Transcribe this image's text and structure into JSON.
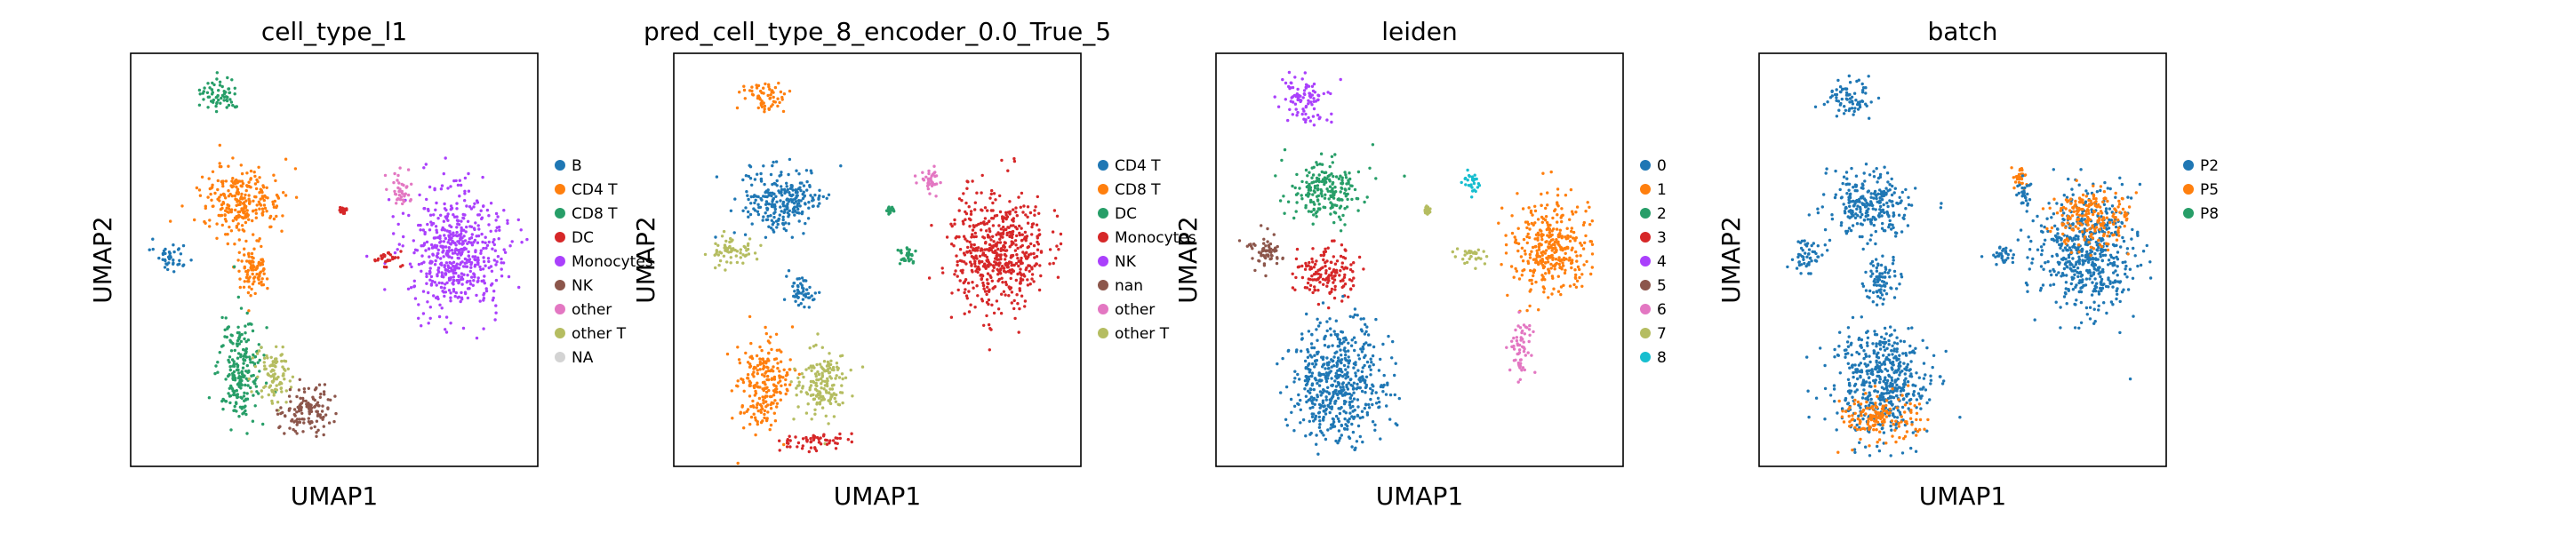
{
  "figure": {
    "background": "#ffffff"
  },
  "chart_data": [
    {
      "type": "scatter",
      "title": "cell_type_l1",
      "xlabel": "UMAP1",
      "ylabel": "UMAP2",
      "grid": false,
      "ticks": false,
      "legend_placement": "right",
      "legend": [
        {
          "label": "B",
          "color": "#1f77b4"
        },
        {
          "label": "CD4 T",
          "color": "#ff7f0e"
        },
        {
          "label": "CD8 T",
          "color": "#279e68"
        },
        {
          "label": "DC",
          "color": "#d62728"
        },
        {
          "label": "Monocytes",
          "color": "#aa40fc"
        },
        {
          "label": "NK",
          "color": "#8c564b"
        },
        {
          "label": "other",
          "color": "#e377c2"
        },
        {
          "label": "other T",
          "color": "#b5bd61"
        },
        {
          "label": "NA",
          "color": "#d3d3d3"
        }
      ],
      "clusters": [
        {
          "c": "CD8 T",
          "x": 0.22,
          "y": 0.9,
          "rx": 0.055,
          "ry": 0.045
        },
        {
          "c": "CD4 T",
          "x": 0.27,
          "y": 0.64,
          "rx": 0.11,
          "ry": 0.09
        },
        {
          "c": "CD4 T",
          "x": 0.3,
          "y": 0.48,
          "rx": 0.05,
          "ry": 0.07
        },
        {
          "c": "B",
          "x": 0.1,
          "y": 0.51,
          "rx": 0.045,
          "ry": 0.035
        },
        {
          "c": "CD8 T",
          "x": 0.27,
          "y": 0.23,
          "rx": 0.06,
          "ry": 0.14
        },
        {
          "c": "other T",
          "x": 0.35,
          "y": 0.22,
          "rx": 0.045,
          "ry": 0.08
        },
        {
          "c": "NK",
          "x": 0.43,
          "y": 0.14,
          "rx": 0.07,
          "ry": 0.07
        },
        {
          "c": "Monocytes",
          "x": 0.8,
          "y": 0.52,
          "rx": 0.13,
          "ry": 0.16
        },
        {
          "c": "DC",
          "x": 0.63,
          "y": 0.5,
          "rx": 0.04,
          "ry": 0.025
        },
        {
          "c": "other",
          "x": 0.66,
          "y": 0.67,
          "rx": 0.03,
          "ry": 0.05
        },
        {
          "c": "DC",
          "x": 0.52,
          "y": 0.62,
          "rx": 0.008,
          "ry": 0.008
        }
      ]
    },
    {
      "type": "scatter",
      "title": "pred_cell_type_8_encoder_0.0_True_5",
      "xlabel": "UMAP1",
      "ylabel": "UMAP2",
      "grid": false,
      "ticks": false,
      "legend_placement": "right",
      "legend": [
        {
          "label": "CD4 T",
          "color": "#1f77b4"
        },
        {
          "label": "CD8 T",
          "color": "#ff7f0e"
        },
        {
          "label": "DC",
          "color": "#279e68"
        },
        {
          "label": "Monocytes",
          "color": "#d62728"
        },
        {
          "label": "NK",
          "color": "#aa40fc"
        },
        {
          "label": "nan",
          "color": "#8c564b"
        },
        {
          "label": "other",
          "color": "#e377c2"
        },
        {
          "label": "other T",
          "color": "#b5bd61"
        }
      ],
      "clusters": [
        {
          "c": "CD8 T",
          "x": 0.22,
          "y": 0.9,
          "rx": 0.055,
          "ry": 0.045
        },
        {
          "c": "CD4 T",
          "x": 0.27,
          "y": 0.64,
          "rx": 0.11,
          "ry": 0.09
        },
        {
          "c": "other T",
          "x": 0.14,
          "y": 0.52,
          "rx": 0.06,
          "ry": 0.04
        },
        {
          "c": "CD4 T",
          "x": 0.31,
          "y": 0.42,
          "rx": 0.04,
          "ry": 0.05
        },
        {
          "c": "CD8 T",
          "x": 0.22,
          "y": 0.2,
          "rx": 0.07,
          "ry": 0.12
        },
        {
          "c": "other T",
          "x": 0.36,
          "y": 0.2,
          "rx": 0.07,
          "ry": 0.09
        },
        {
          "c": "Monocytes",
          "x": 0.34,
          "y": 0.06,
          "rx": 0.09,
          "ry": 0.025
        },
        {
          "c": "Monocytes",
          "x": 0.8,
          "y": 0.52,
          "rx": 0.13,
          "ry": 0.16
        },
        {
          "c": "DC",
          "x": 0.57,
          "y": 0.51,
          "rx": 0.03,
          "ry": 0.02
        },
        {
          "c": "other",
          "x": 0.63,
          "y": 0.68,
          "rx": 0.03,
          "ry": 0.045
        },
        {
          "c": "DC",
          "x": 0.53,
          "y": 0.62,
          "rx": 0.008,
          "ry": 0.008
        }
      ]
    },
    {
      "type": "scatter",
      "title": "leiden",
      "xlabel": "UMAP1",
      "ylabel": "UMAP2",
      "grid": false,
      "ticks": false,
      "legend_placement": "right",
      "legend": [
        {
          "label": "0",
          "color": "#1f77b4"
        },
        {
          "label": "1",
          "color": "#ff7f0e"
        },
        {
          "label": "2",
          "color": "#279e68"
        },
        {
          "label": "3",
          "color": "#d62728"
        },
        {
          "label": "4",
          "color": "#aa40fc"
        },
        {
          "label": "5",
          "color": "#8c564b"
        },
        {
          "label": "6",
          "color": "#e377c2"
        },
        {
          "label": "7",
          "color": "#b5bd61"
        },
        {
          "label": "8",
          "color": "#17becf"
        }
      ],
      "clusters": [
        {
          "c": "4",
          "x": 0.22,
          "y": 0.89,
          "rx": 0.06,
          "ry": 0.06
        },
        {
          "c": "2",
          "x": 0.27,
          "y": 0.67,
          "rx": 0.1,
          "ry": 0.08
        },
        {
          "c": "5",
          "x": 0.12,
          "y": 0.52,
          "rx": 0.05,
          "ry": 0.05
        },
        {
          "c": "3",
          "x": 0.27,
          "y": 0.47,
          "rx": 0.08,
          "ry": 0.07
        },
        {
          "c": "0",
          "x": 0.3,
          "y": 0.2,
          "rx": 0.13,
          "ry": 0.16
        },
        {
          "c": "1",
          "x": 0.82,
          "y": 0.53,
          "rx": 0.11,
          "ry": 0.12
        },
        {
          "c": "7",
          "x": 0.63,
          "y": 0.51,
          "rx": 0.05,
          "ry": 0.025
        },
        {
          "c": "6",
          "x": 0.75,
          "y": 0.29,
          "rx": 0.03,
          "ry": 0.08
        },
        {
          "c": "8",
          "x": 0.63,
          "y": 0.69,
          "rx": 0.025,
          "ry": 0.04
        },
        {
          "c": "7",
          "x": 0.52,
          "y": 0.62,
          "rx": 0.008,
          "ry": 0.008
        }
      ]
    },
    {
      "type": "scatter",
      "title": "batch",
      "xlabel": "UMAP1",
      "ylabel": "UMAP2",
      "grid": false,
      "ticks": false,
      "legend_placement": "right",
      "legend": [
        {
          "label": "P2",
          "color": "#1f77b4"
        },
        {
          "label": "P5",
          "color": "#ff7f0e"
        },
        {
          "label": "P8",
          "color": "#279e68"
        }
      ],
      "clusters": [
        {
          "c": "P2",
          "x": 0.22,
          "y": 0.89,
          "rx": 0.06,
          "ry": 0.05
        },
        {
          "c": "P2",
          "x": 0.27,
          "y": 0.64,
          "rx": 0.11,
          "ry": 0.09
        },
        {
          "c": "P2",
          "x": 0.12,
          "y": 0.51,
          "rx": 0.05,
          "ry": 0.04
        },
        {
          "c": "P2",
          "x": 0.3,
          "y": 0.45,
          "rx": 0.05,
          "ry": 0.06
        },
        {
          "c": "P2",
          "x": 0.3,
          "y": 0.2,
          "rx": 0.13,
          "ry": 0.15
        },
        {
          "c": "P5",
          "x": 0.3,
          "y": 0.12,
          "rx": 0.1,
          "ry": 0.06
        },
        {
          "c": "P2",
          "x": 0.8,
          "y": 0.52,
          "rx": 0.13,
          "ry": 0.16
        },
        {
          "c": "P5",
          "x": 0.82,
          "y": 0.6,
          "rx": 0.1,
          "ry": 0.08
        },
        {
          "c": "P2",
          "x": 0.6,
          "y": 0.51,
          "rx": 0.04,
          "ry": 0.025
        },
        {
          "c": "P5",
          "x": 0.64,
          "y": 0.7,
          "rx": 0.02,
          "ry": 0.03
        },
        {
          "c": "P2",
          "x": 0.65,
          "y": 0.66,
          "rx": 0.02,
          "ry": 0.04
        }
      ]
    }
  ]
}
